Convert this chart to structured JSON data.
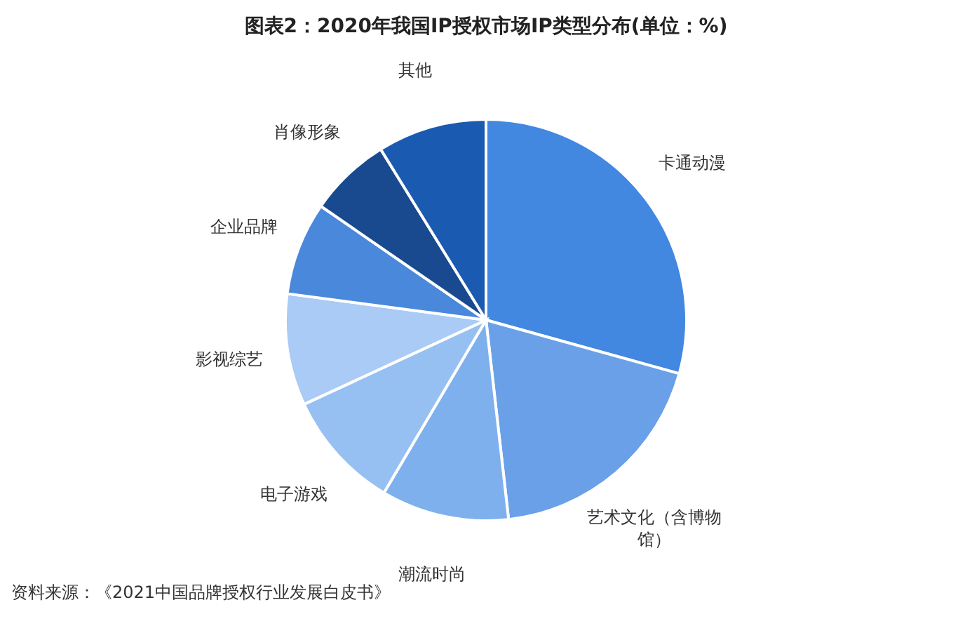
{
  "chart_data": {
    "type": "pie",
    "title": "图表2：2020年我国IP授权市场IP类型分布(单位：%)",
    "categories": [
      "卡通动漫",
      "艺术文化（含博物馆）",
      "潮流时尚",
      "电子游戏",
      "影视综艺",
      "企业品牌",
      "肖像形象",
      "其他"
    ],
    "values": [
      29.3,
      18.9,
      10.3,
      9.6,
      9.0,
      7.5,
      6.6,
      8.8
    ],
    "colors": [
      "#4287e0",
      "#6aa0e8",
      "#7eb0ee",
      "#97c0f2",
      "#a9cbf5",
      "#4a88db",
      "#194a8f",
      "#1a5ab0"
    ],
    "legend": false,
    "annotations": [
      "资料来源：《2021中国品牌授权行业发展白皮书》"
    ]
  }
}
